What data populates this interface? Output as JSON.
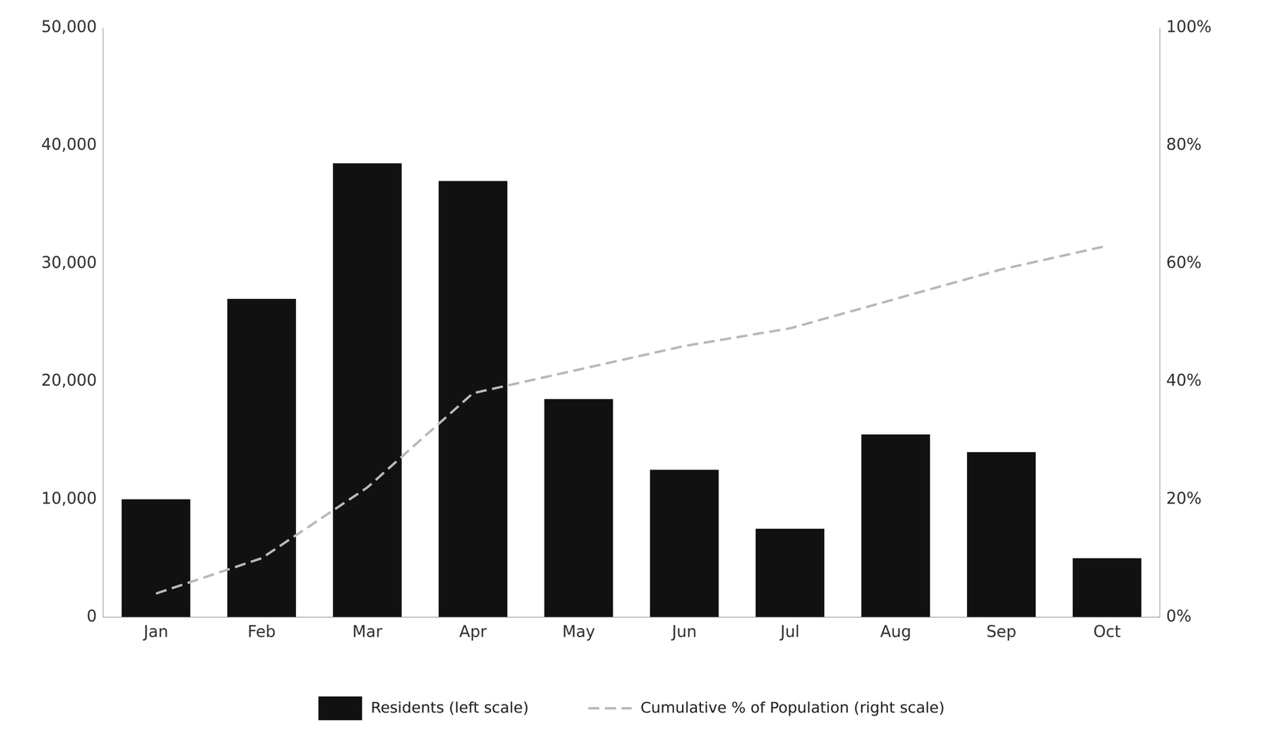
{
  "chart_data": {
    "type": "bar",
    "categories": [
      "Jan",
      "Feb",
      "Mar",
      "Apr",
      "May",
      "Jun",
      "Jul",
      "Aug",
      "Sep",
      "Oct"
    ],
    "series": [
      {
        "name": "Residents (left scale)",
        "type": "bar",
        "color": "#111111",
        "values": [
          10000,
          27000,
          38500,
          37000,
          18500,
          12500,
          7500,
          15500,
          14000,
          5000
        ]
      },
      {
        "name": "Cumulative % of Population (right scale)",
        "type": "line",
        "axis": "y2",
        "color": "#b8b8b8",
        "line_style": "dashed",
        "values": [
          0.04,
          0.1,
          0.22,
          0.38,
          0.42,
          0.46,
          0.49,
          0.54,
          0.59,
          0.63
        ]
      }
    ],
    "ylim": [
      0,
      50000
    ],
    "yticks": [
      0,
      {
        "value": 10000,
        "label": "10,000"
      },
      {
        "value": 20000,
        "label": "20,000"
      },
      {
        "value": 30000,
        "label": "30,000"
      },
      {
        "value": 40000,
        "label": "40,000"
      },
      {
        "value": 50000,
        "label": "50,000"
      }
    ],
    "y2lim": [
      0,
      1.0
    ],
    "y2ticks": [
      {
        "value": 0,
        "label": "0%"
      },
      {
        "value": 0.2,
        "label": "20%"
      },
      {
        "value": 0.4,
        "label": "40%"
      },
      {
        "value": 0.6,
        "label": "60%"
      },
      {
        "value": 0.8,
        "label": "80%"
      },
      {
        "value": 1.0,
        "label": "100%"
      }
    ],
    "grid": false,
    "legend": "bottom"
  }
}
